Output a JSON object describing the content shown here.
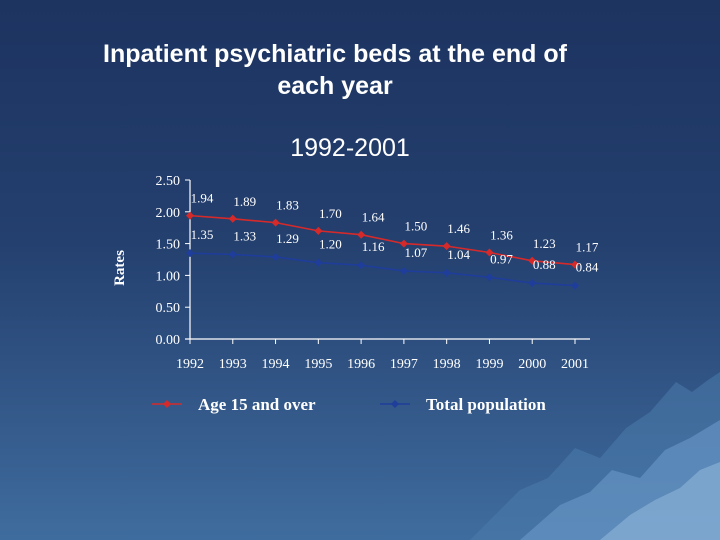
{
  "slide": {
    "title_line1": "Inpatient psychiatric beds at the end of",
    "title_line2": "each year",
    "subtitle": "1992-2001"
  },
  "colors": {
    "background_top": "#1d3360",
    "background_bottom": "#3f6c9e",
    "text": "#ffffff",
    "axis": "#ffffff",
    "series_age15": "#d62a2a",
    "series_total": "#1f3d9a"
  },
  "chart_data": {
    "type": "line",
    "title": "",
    "xlabel": "",
    "ylabel": "Rates",
    "x": [
      "1992",
      "1993",
      "1994",
      "1995",
      "1996",
      "1997",
      "1998",
      "1999",
      "2000",
      "2001"
    ],
    "yticks": [
      "0.00",
      "0.50",
      "1.00",
      "1.50",
      "2.00",
      "2.50"
    ],
    "ylim": [
      0,
      2.5
    ],
    "grid": false,
    "legend_position": "bottom",
    "series": [
      {
        "name": "Age 15 and over",
        "color": "#d62a2a",
        "values": [
          1.94,
          1.89,
          1.83,
          1.7,
          1.64,
          1.5,
          1.46,
          1.36,
          1.23,
          1.17
        ],
        "labels": [
          "1.94",
          "1.89",
          "1.83",
          "1.70",
          "1.64",
          "1.50",
          "1.46",
          "1.36",
          "1.23",
          "1.17"
        ]
      },
      {
        "name": "Total population",
        "color": "#1f3d9a",
        "values": [
          1.35,
          1.33,
          1.29,
          1.2,
          1.16,
          1.07,
          1.04,
          0.97,
          0.88,
          0.84
        ],
        "labels": [
          "1.35",
          "1.33",
          "1.29",
          "1.20",
          "1.16",
          "1.07",
          "1.04",
          "0.97",
          "0.88",
          "0.84"
        ]
      }
    ]
  }
}
